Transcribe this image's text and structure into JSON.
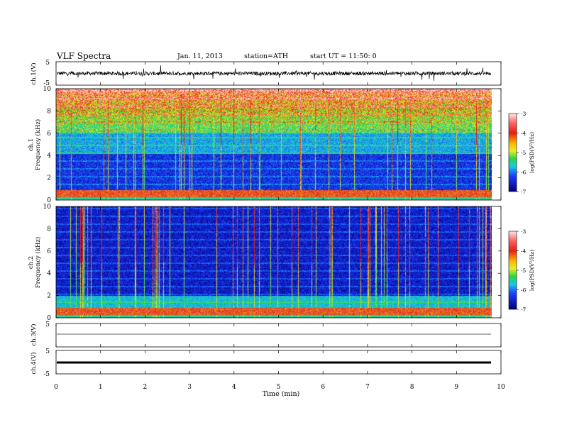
{
  "header": {
    "title": "VLF  Spectra",
    "date": "Jan. 11, 2013",
    "station": "station=ATH",
    "start": "start  UT  =   11:50: 0"
  },
  "colors": {
    "low": "#00007a",
    "blue": "#1e3cff",
    "cyan": "#19c8e6",
    "green": "#28d746",
    "yellow": "#e6ee28",
    "red": "#e61e14",
    "high": "#ffd2d2"
  },
  "chart_data": [
    {
      "type": "line",
      "ylabel": "ch.1(V)",
      "ylim": [
        -5,
        5
      ],
      "yticks": [
        "5",
        "-5"
      ],
      "description_values": {
        "baseline": 0,
        "noise_amplitude": 1
      }
    },
    {
      "type": "heatmap",
      "ylabel_top": "ch.1",
      "ylabel": "Frequency  (kHz)",
      "ylim": [
        0,
        10
      ],
      "yticks": [
        "0",
        "2",
        "4",
        "6",
        "8",
        "10"
      ],
      "colorbar": {
        "label": "log(PSD(V²/Hz)",
        "ticks": [
          "-3",
          "-4",
          "-5",
          "-6",
          "-7"
        ],
        "range": [
          -7,
          -3
        ]
      }
    },
    {
      "type": "heatmap",
      "ylabel_top": "ch.2",
      "ylabel": "Frequency  (kHz)",
      "ylim": [
        0,
        10
      ],
      "yticks": [
        "0",
        "2",
        "4",
        "6",
        "8",
        "10"
      ],
      "colorbar": {
        "label": "log(PSD(V²/Hz)",
        "ticks": [
          "-3",
          "-4",
          "-5",
          "-6",
          "-7"
        ],
        "range": [
          -7,
          -3
        ]
      }
    },
    {
      "type": "line",
      "ylabel": "ch.3(V)",
      "ylim": [
        -5,
        5
      ],
      "yticks": [
        "5"
      ],
      "description_values": {
        "baseline": 0
      }
    },
    {
      "type": "line",
      "ylabel": "ch.4(V)",
      "ylim": [
        -5,
        5
      ],
      "yticks": [
        "5",
        "-5"
      ],
      "description_values": {
        "baseline": 0
      }
    }
  ],
  "xaxis": {
    "label": "Time  (min)",
    "xlim": [
      0,
      10
    ],
    "ticks": [
      "0",
      "1",
      "2",
      "3",
      "4",
      "5",
      "6",
      "7",
      "8",
      "9",
      "10"
    ]
  }
}
